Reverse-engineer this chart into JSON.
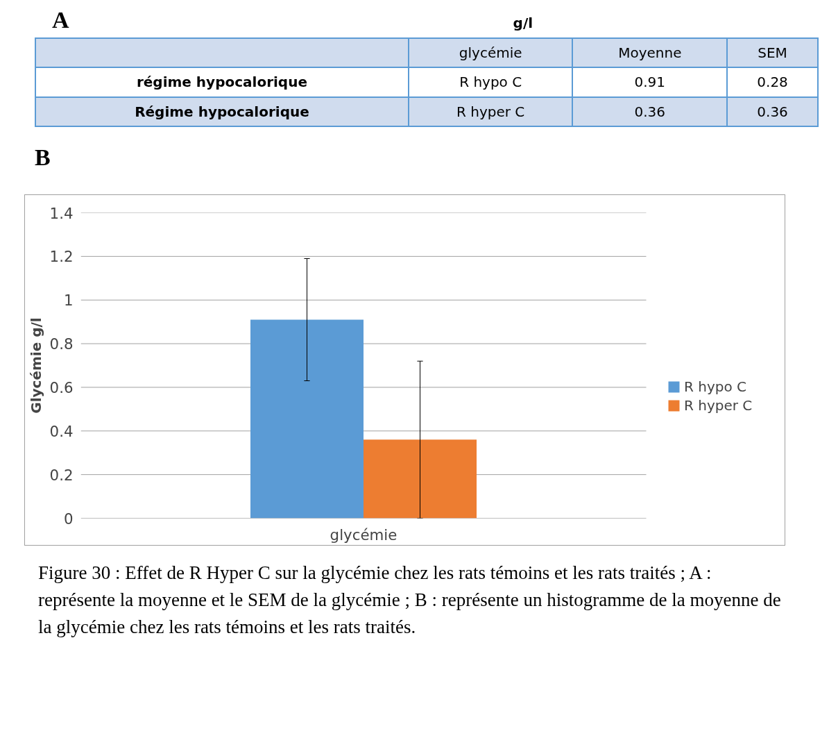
{
  "chart_data": {
    "type": "bar",
    "ylabel": "Glycémie g/l",
    "categories": [
      "glycémie"
    ],
    "series": [
      {
        "name": "R hypo C",
        "color": "#5b9bd5",
        "values": [
          0.91
        ],
        "errors": [
          0.28
        ]
      },
      {
        "name": "R hyper C",
        "color": "#ed7d31",
        "values": [
          0.36
        ],
        "errors": [
          0.36
        ]
      }
    ],
    "ylim": [
      0,
      1.4
    ],
    "yticks": [
      0,
      0.2,
      0.4,
      0.6,
      0.8,
      1,
      1.2,
      1.4
    ],
    "grid": "y",
    "legend": "right",
    "annotations": [
      "A",
      "g/l",
      "glycémie",
      "Moyenne",
      "SEM",
      "régime hypocalorique",
      "R hypo C",
      "0.91",
      "0.28",
      "Régime hypocalorique",
      "R hyper C",
      "0.36",
      "0.36",
      "B",
      "Figure 30 : Effet de R Hyper C sur la glycémie chez les rats témoins et les rats traités ; A : représente la moyenne et le SEM de la glycémie ; B : représente un histogramme de la moyenne de la glycémie chez les rats témoins et les rats traités."
    ]
  }
}
